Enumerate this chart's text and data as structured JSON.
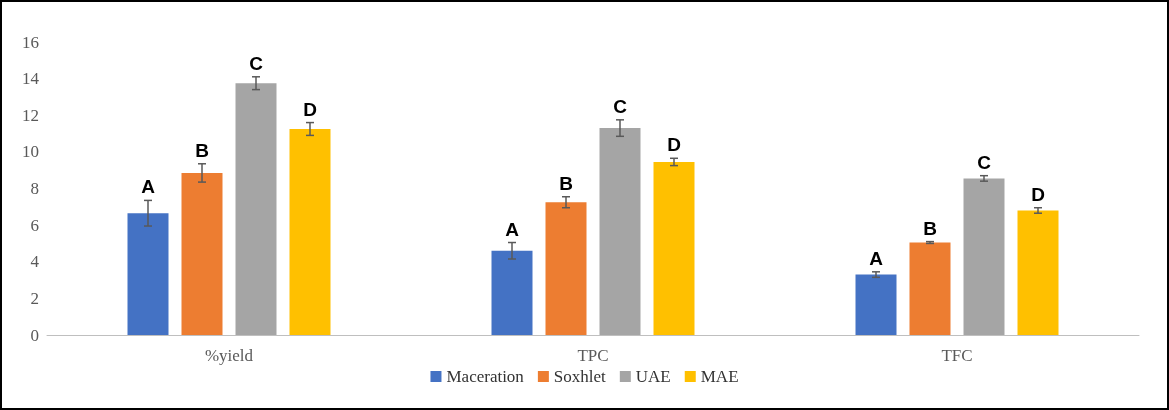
{
  "chart_data": {
    "type": "bar",
    "categories": [
      "%yield",
      "TPC",
      "TFC"
    ],
    "series": [
      {
        "name": "Maceration",
        "color": "#4472c4",
        "values": [
          6.65,
          4.6,
          3.3
        ],
        "errors": [
          0.7,
          0.45,
          0.15
        ],
        "value_labels": [
          "A",
          "A",
          "A"
        ]
      },
      {
        "name": "Soxhlet",
        "color": "#ed7d31",
        "values": [
          8.85,
          7.25,
          5.05
        ],
        "errors": [
          0.5,
          0.3,
          0.05
        ],
        "value_labels": [
          "B",
          "B",
          "B"
        ]
      },
      {
        "name": "UAE",
        "color": "#a5a5a5",
        "values": [
          13.75,
          11.3,
          8.55
        ],
        "errors": [
          0.35,
          0.45,
          0.15
        ],
        "value_labels": [
          "C",
          "C",
          "C"
        ]
      },
      {
        "name": "MAE",
        "color": "#ffc000",
        "values": [
          11.25,
          9.45,
          6.8
        ],
        "errors": [
          0.35,
          0.2,
          0.15
        ],
        "value_labels": [
          "D",
          "D",
          "D"
        ]
      }
    ],
    "ylim": [
      0,
      16
    ],
    "yticks": [
      0,
      2,
      4,
      6,
      8,
      10,
      12,
      14,
      16
    ],
    "grid": false,
    "legend": "bottom"
  }
}
